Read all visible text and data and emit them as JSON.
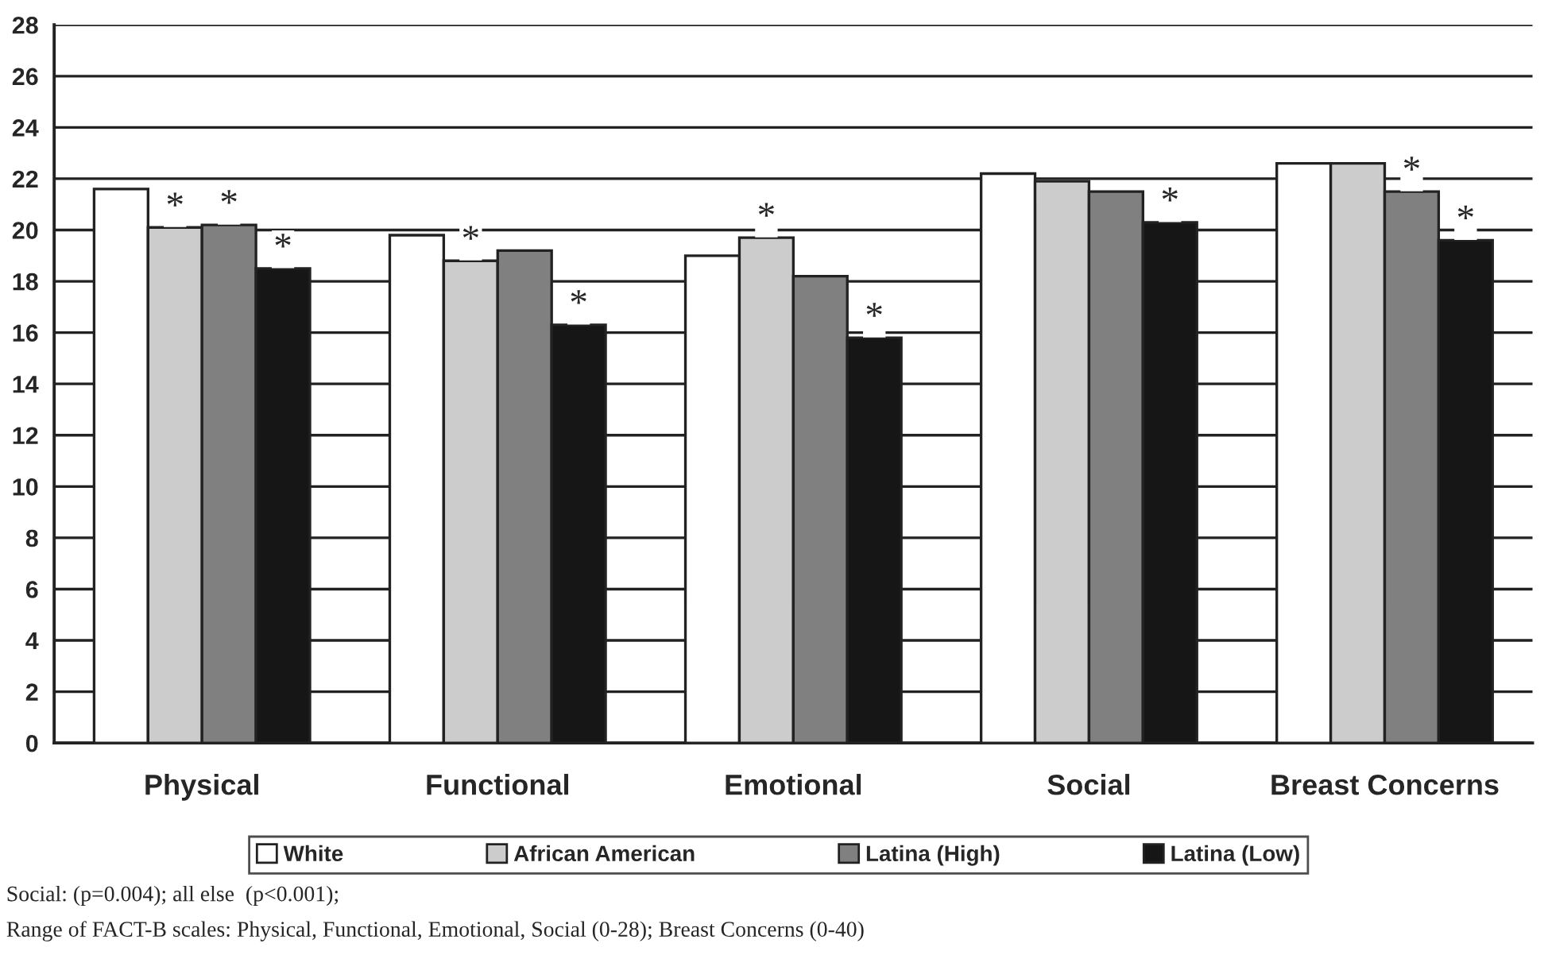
{
  "chart_data": {
    "type": "bar",
    "categories": [
      "Physical",
      "Functional",
      "Emotional",
      "Social",
      "Breast Concerns"
    ],
    "series": [
      {
        "name": "White",
        "color": "#ffffff",
        "values": [
          21.6,
          19.8,
          19.0,
          22.2,
          22.6
        ]
      },
      {
        "name": "African American",
        "color": "#cccccc",
        "values": [
          20.1,
          18.8,
          19.7,
          21.9,
          22.6
        ]
      },
      {
        "name": "Latina (High)",
        "color": "#808080",
        "values": [
          20.2,
          19.2,
          18.2,
          21.5,
          21.5
        ]
      },
      {
        "name": "Latina (Low)",
        "color": "#161616",
        "values": [
          18.5,
          16.3,
          15.8,
          20.3,
          19.6
        ]
      }
    ],
    "ylim": [
      0,
      28
    ],
    "yticks": [
      0,
      2,
      4,
      6,
      8,
      10,
      12,
      14,
      16,
      18,
      20,
      22,
      24,
      26,
      28
    ],
    "grid": "y",
    "legend": "bottom",
    "annotations": [
      {
        "text": "*",
        "x": "Physical",
        "y": 20.1
      },
      {
        "text": "*",
        "x": "Physical",
        "y": 20.2
      },
      {
        "text": "*",
        "x": "Physical",
        "y": 18.5
      },
      {
        "text": "*",
        "x": "Functional",
        "y": 18.8
      },
      {
        "text": "*",
        "x": "Functional",
        "y": 16.3
      },
      {
        "text": "*",
        "x": "Emotional",
        "y": 19.7
      },
      {
        "text": "*",
        "x": "Emotional",
        "y": 15.8
      },
      {
        "text": "*",
        "x": "Social",
        "y": 20.3
      },
      {
        "text": "*",
        "x": "Breast Concerns",
        "y": 21.5
      },
      {
        "text": "*",
        "x": "Breast Concerns",
        "y": 19.6
      },
      "Social: (p=0.004); all else  (p<0.001);",
      "Range of FACT-B scales: Physical, Functional, Emotional, Social (0-28); Breast Concerns (0-40)"
    ]
  }
}
